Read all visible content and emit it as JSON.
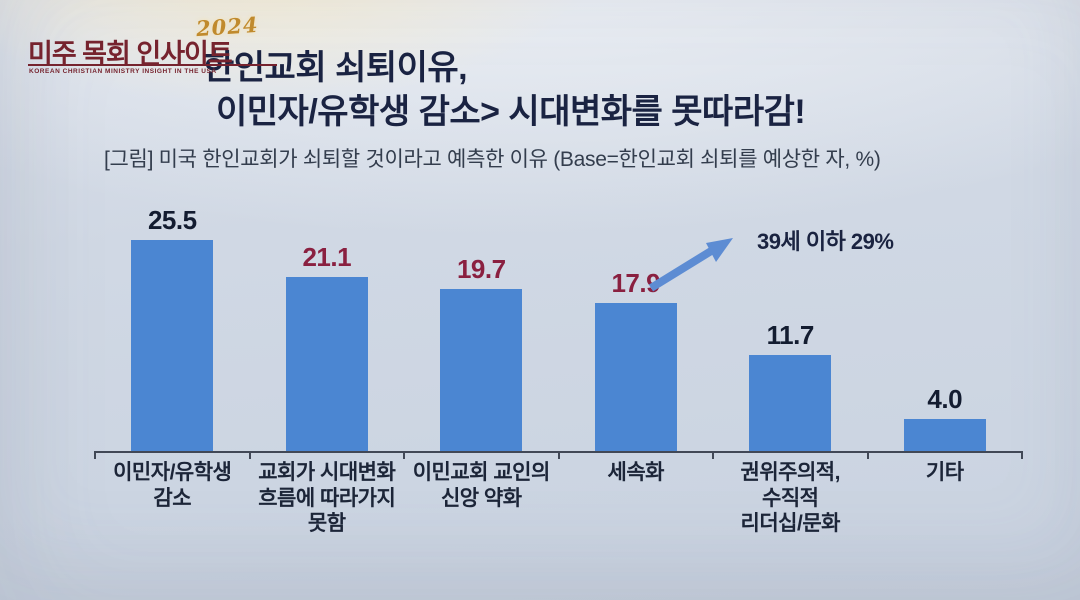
{
  "logo": {
    "year": "2024",
    "name": "미주 목회 인사이트",
    "tagline": "KOREAN CHRISTIAN MINISTRY INSIGHT IN THE USA",
    "brand_color": "#76232e",
    "gold_color": "#c08a2d"
  },
  "header": {
    "title_line1": "한인교회 쇠퇴이유,",
    "title_line2": "이민자/유학생 감소> 시대변화를 못따라감!",
    "title_color": "#1a2342"
  },
  "caption": "[그림] 미국 한인교회가 쇠퇴할 것이라고 예측한 이유 (Base=한인교회 쇠퇴를 예상한 자, %)",
  "annotation": {
    "text": "39세 이하 29%",
    "text_color": "#1a2340",
    "arrow_color": "#5d8cd3"
  },
  "chart_data": {
    "type": "bar",
    "title": "미국 한인교회가 쇠퇴할 것이라고 예측한 이유",
    "unit": "%",
    "base_note": "Base=한인교회 쇠퇴를 예상한 자, %",
    "categories": [
      "이민자/유학생\n감소",
      "교회가 시대변화\n흐름에 따라가지\n못함",
      "이민교회 교인의\n신앙 약화",
      "세속화",
      "권위주의적,\n수직적\n리더십/문화",
      "기타"
    ],
    "values": [
      25.5,
      21.1,
      19.7,
      17.9,
      11.7,
      4.0
    ],
    "value_labels": [
      "25.5",
      "21.1",
      "19.7",
      "17.9",
      "11.7",
      "4.0"
    ],
    "value_label_colors": [
      "#131c30",
      "#8a2040",
      "#8a2040",
      "#8a2040",
      "#131c30",
      "#131c30"
    ],
    "bar_color": "#4b86d2",
    "axis_color": "#414856",
    "ylim": [
      0,
      28
    ],
    "grid": false,
    "legend": false,
    "annotations": [
      {
        "target_category": "세속화",
        "text": "39세 이하 29%"
      }
    ]
  }
}
